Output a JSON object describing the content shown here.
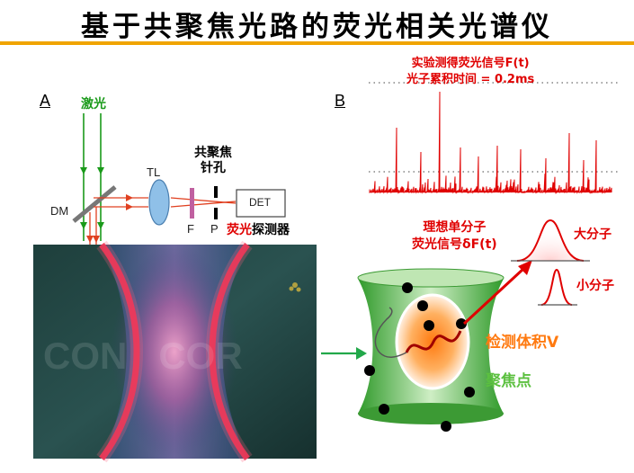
{
  "title": "基于共聚焦光路的荧光相关光谱仪",
  "panel_a": {
    "letter": "A",
    "laser_label": "激光",
    "dm_label": "DM",
    "tl_label": "TL",
    "pinhole_label_line1": "共聚焦",
    "pinhole_label_line2": "针孔",
    "f_label": "F",
    "p_label": "P",
    "detector_box_label": "DET",
    "detector_label_red": "荧光",
    "detector_label_black": "探测器",
    "watermark": "CON   COR"
  },
  "panel_b": {
    "letter": "B",
    "signal_title_line1": "实验测得荧光信号F(t)",
    "signal_title_line2": "光子累积时间 = 0.2ms",
    "ideal_line1": "理想单分子",
    "ideal_line2": "荧光信号δF(t)",
    "big_molecule": "大分子",
    "small_molecule": "小分子",
    "detection_volume": "检测体积V",
    "focal_point": "聚焦点"
  },
  "colors": {
    "accent_rule": "#f0a400",
    "signal_red": "#e00000",
    "laser_green": "#1a9a1a",
    "beam_red": "#e04020",
    "focus_green": "#5cc040",
    "detection_orange": "#ff8a1a"
  }
}
